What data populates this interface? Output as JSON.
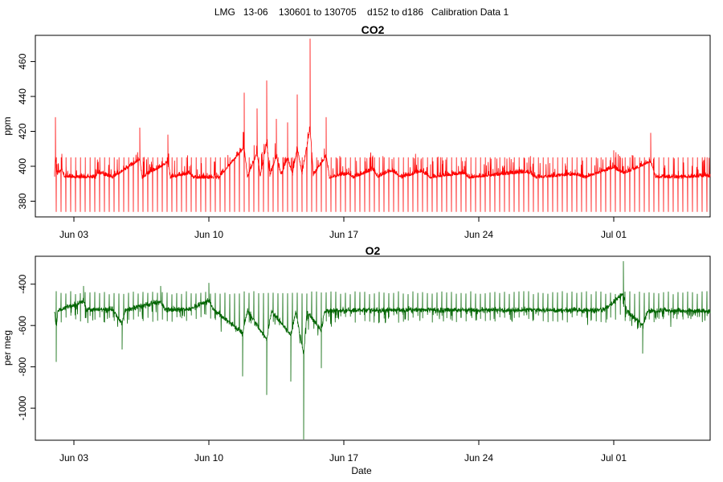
{
  "figure": {
    "title": "LMG   13-06    130601 to 130705    d152 to d186   Calibration Data 1"
  },
  "chart_data": [
    {
      "type": "line",
      "title": "CO2",
      "xlabel": "",
      "ylabel": "ppm",
      "color": "#ff0000",
      "x_range": [
        "2013-06-01",
        "2013-07-06"
      ],
      "xticks": [
        {
          "date": "2013-06-03",
          "label": "Jun 03"
        },
        {
          "date": "2013-06-10",
          "label": "Jun 10"
        },
        {
          "date": "2013-06-17",
          "label": "Jun 17"
        },
        {
          "date": "2013-06-24",
          "label": "Jun 24"
        },
        {
          "date": "2013-07-01",
          "label": "Jul 01"
        }
      ],
      "ylim": [
        371,
        475
      ],
      "yticks": [
        380,
        400,
        420,
        440,
        460
      ],
      "baseline_ppm": 393,
      "calibration_low_ppm": 374,
      "calibration_high_ppm": 405,
      "series": [
        {
          "points": [
            [
              "2013-06-02 00:00",
              396
            ],
            [
              "2013-06-02 01:00",
              428
            ],
            [
              "2013-06-02 03:00",
              398
            ],
            [
              "2013-06-02 09:00",
              407
            ],
            [
              "2013-06-02 12:00",
              394
            ],
            [
              "2013-06-04 03:00",
              393
            ],
            [
              "2013-06-04 06:00",
              401
            ],
            [
              "2013-06-05 00:00",
              393
            ],
            [
              "2013-06-06 10:00",
              422
            ],
            [
              "2013-06-06 13:00",
              393
            ],
            [
              "2013-06-07 21:00",
              418
            ],
            [
              "2013-06-08 00:00",
              393
            ],
            [
              "2013-06-09 00:00",
              400
            ],
            [
              "2013-06-09 05:00",
              393
            ],
            [
              "2013-06-10 12:00",
              392.5
            ],
            [
              "2013-06-11 20:00",
              442
            ],
            [
              "2013-06-12 00:00",
              394
            ],
            [
              "2013-06-12 12:00",
              433
            ],
            [
              "2013-06-12 16:00",
              395
            ],
            [
              "2013-06-13 00:00",
              449
            ],
            [
              "2013-06-13 04:00",
              396
            ],
            [
              "2013-06-13 12:00",
              427
            ],
            [
              "2013-06-13 18:00",
              397
            ],
            [
              "2013-06-14 02:00",
              425
            ],
            [
              "2013-06-14 08:00",
              398
            ],
            [
              "2013-06-14 14:00",
              441
            ],
            [
              "2013-06-14 20:00",
              400
            ],
            [
              "2013-06-15 06:00",
              473
            ],
            [
              "2013-06-15 10:00",
              397
            ],
            [
              "2013-06-16 02:00",
              428
            ],
            [
              "2013-06-16 06:00",
              393
            ],
            [
              "2013-06-17 06:00",
              399
            ],
            [
              "2013-06-17 12:00",
              393
            ],
            [
              "2013-06-18 12:00",
              406
            ],
            [
              "2013-06-18 18:00",
              394
            ],
            [
              "2013-06-19 12:00",
              404
            ],
            [
              "2013-06-20 00:00",
              393
            ],
            [
              "2013-06-21 00:00",
              403
            ],
            [
              "2013-06-21 12:00",
              393
            ],
            [
              "2013-06-23 06:00",
              400
            ],
            [
              "2013-06-23 12:00",
              393
            ],
            [
              "2013-06-26 12:00",
              402
            ],
            [
              "2013-06-27 00:00",
              393
            ],
            [
              "2013-06-29 00:00",
              398
            ],
            [
              "2013-06-29 12:00",
              393
            ],
            [
              "2013-07-01 00:00",
              409
            ],
            [
              "2013-07-01 12:00",
              400
            ],
            [
              "2013-07-02 00:00",
              406
            ],
            [
              "2013-07-02 22:00",
              419
            ],
            [
              "2013-07-03 04:00",
              394
            ],
            [
              "2013-07-04 12:00",
              393
            ],
            [
              "2013-07-05 12:00",
              395
            ],
            [
              "2013-07-06 00:00",
              395
            ]
          ]
        }
      ]
    },
    {
      "type": "line",
      "title": "O2",
      "xlabel": "Date",
      "ylabel": "per meg",
      "color": "#006400",
      "x_range": [
        "2013-06-01",
        "2013-07-06"
      ],
      "xticks": [
        {
          "date": "2013-06-03",
          "label": "Jun 03"
        },
        {
          "date": "2013-06-10",
          "label": "Jun 10"
        },
        {
          "date": "2013-06-17",
          "label": "Jun 17"
        },
        {
          "date": "2013-06-24",
          "label": "Jun 24"
        },
        {
          "date": "2013-07-01",
          "label": "Jul 01"
        }
      ],
      "ylim": [
        -1155,
        -265
      ],
      "yticks": [
        -1000,
        -800,
        -600,
        -400
      ],
      "baseline_per_meg": -525,
      "series": [
        {
          "points": [
            [
              "2013-06-02 00:00",
              -540
            ],
            [
              "2013-06-02 02:00",
              -775
            ],
            [
              "2013-06-02 04:00",
              -530
            ],
            [
              "2013-06-03 12:00",
              -410
            ],
            [
              "2013-06-03 16:00",
              -515
            ],
            [
              "2013-06-05 00:00",
              -515
            ],
            [
              "2013-06-05 12:00",
              -715
            ],
            [
              "2013-06-05 16:00",
              -520
            ],
            [
              "2013-06-07 12:00",
              -410
            ],
            [
              "2013-06-07 18:00",
              -520
            ],
            [
              "2013-06-09 00:00",
              -515
            ],
            [
              "2013-06-10 00:00",
              -395
            ],
            [
              "2013-06-10 06:00",
              -520
            ],
            [
              "2013-06-11 18:00",
              -845
            ],
            [
              "2013-06-12 00:00",
              -530
            ],
            [
              "2013-06-13 00:00",
              -935
            ],
            [
              "2013-06-13 06:00",
              -540
            ],
            [
              "2013-06-14 06:00",
              -870
            ],
            [
              "2013-06-14 12:00",
              -545
            ],
            [
              "2013-06-14 22:00",
              -1150
            ],
            [
              "2013-06-15 02:00",
              -540
            ],
            [
              "2013-06-15 20:00",
              -805
            ],
            [
              "2013-06-16 00:00",
              -540
            ],
            [
              "2013-06-18 00:00",
              -525
            ],
            [
              "2013-06-20 00:00",
              -525
            ],
            [
              "2013-06-23 00:00",
              -525
            ],
            [
              "2013-06-26 00:00",
              -525
            ],
            [
              "2013-06-29 00:00",
              -525
            ],
            [
              "2013-06-30 12:00",
              -525
            ],
            [
              "2013-07-01 12:00",
              -290
            ],
            [
              "2013-07-01 16:00",
              -540
            ],
            [
              "2013-07-02 12:00",
              -735
            ],
            [
              "2013-07-02 18:00",
              -540
            ],
            [
              "2013-07-04 00:00",
              -535
            ],
            [
              "2013-07-06 00:00",
              -540
            ]
          ]
        }
      ]
    }
  ]
}
